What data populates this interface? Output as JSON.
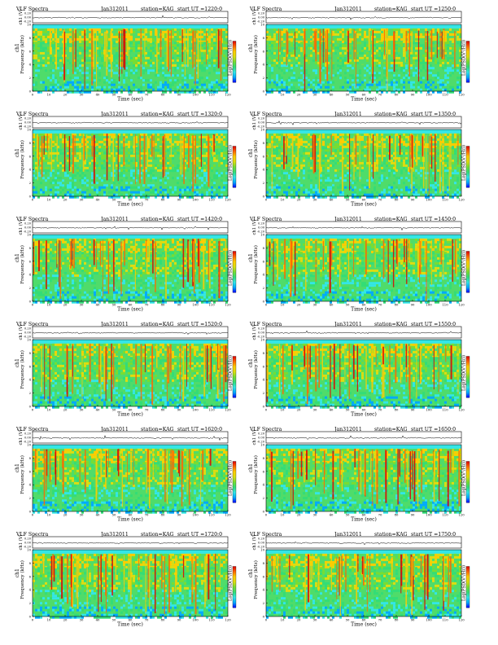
{
  "chart_data": [
    {
      "type": "heatmap",
      "title_left": "VLF Spectra",
      "date": "Jan312011",
      "station": "station=KAG",
      "start": "start  UT =1220:0",
      "top_ylabel": "ch1 (V)",
      "top_yticks": [
        "0.20",
        "0.00",
        "-0.20"
      ],
      "ylabel_1": "ch1",
      "ylabel_2": "Frequency  (kHz)",
      "yticks": [
        "0",
        "2",
        "4",
        "6",
        "8",
        "10"
      ],
      "xlabel": "Time  (sec)",
      "xticks": [
        "0",
        "10",
        "20",
        "30",
        "40",
        "50",
        "60",
        "70",
        "80",
        "90",
        "100",
        "110",
        "120"
      ],
      "xlim": [
        0,
        120
      ],
      "ylim": [
        0,
        10
      ],
      "colorbar_label": "Log(PSD(V²/Hz))"
    },
    {
      "type": "heatmap",
      "title_left": "VLF Spectra",
      "date": "Jan312011",
      "station": "station=KAG",
      "start": "start  UT =1250:0",
      "top_ylabel": "ch1 (V)",
      "top_yticks": [
        "0.20",
        "0.00",
        "-0.20"
      ],
      "ylabel_1": "ch1",
      "ylabel_2": "Frequency  (kHz)",
      "yticks": [
        "0",
        "2",
        "4",
        "6",
        "8",
        "10"
      ],
      "xlabel": "Time  (sec)",
      "xticks": [
        "0",
        "10",
        "20",
        "30",
        "40",
        "50",
        "60",
        "70",
        "80",
        "90",
        "100",
        "110",
        "120"
      ],
      "xlim": [
        0,
        120
      ],
      "ylim": [
        0,
        10
      ],
      "colorbar_label": "Log(PSD(V²/Hz))"
    },
    {
      "type": "heatmap",
      "title_left": "VLF Spectra",
      "date": "Jan312011",
      "station": "station=KAG",
      "start": "start  UT =1320:0",
      "top_ylabel": "ch1 (V)",
      "top_yticks": [
        "0.20",
        "0.00",
        "-0.20"
      ],
      "ylabel_1": "ch1",
      "ylabel_2": "Frequency  (kHz)",
      "yticks": [
        "0",
        "2",
        "4",
        "6",
        "8",
        "10"
      ],
      "xlabel": "Time  (sec)",
      "xticks": [
        "0",
        "10",
        "20",
        "30",
        "40",
        "50",
        "60",
        "70",
        "80",
        "90",
        "100",
        "110",
        "120"
      ],
      "xlim": [
        0,
        120
      ],
      "ylim": [
        0,
        10
      ],
      "colorbar_label": "Log(PSD(V²/Hz))"
    },
    {
      "type": "heatmap",
      "title_left": "VLF Spectra",
      "date": "Jan312011",
      "station": "station=KAG",
      "start": "start  UT =1350:0",
      "top_ylabel": "ch1 (V)",
      "top_yticks": [
        "0.20",
        "0.00",
        "-0.20"
      ],
      "ylabel_1": "ch1",
      "ylabel_2": "Frequency  (kHz)",
      "yticks": [
        "0",
        "2",
        "4",
        "6",
        "8",
        "10"
      ],
      "xlabel": "Time  (sec)",
      "xticks": [
        "0",
        "10",
        "20",
        "30",
        "40",
        "50",
        "60",
        "70",
        "80",
        "90",
        "100",
        "110",
        "120"
      ],
      "xlim": [
        0,
        120
      ],
      "ylim": [
        0,
        10
      ],
      "colorbar_label": "Log(PSD(V²/Hz))"
    },
    {
      "type": "heatmap",
      "title_left": "VLF Spectra",
      "date": "Jan312011",
      "station": "station=KAG",
      "start": "start  UT =1420:0",
      "top_ylabel": "ch1 (V)",
      "top_yticks": [
        "0.20",
        "0.00",
        "-0.20"
      ],
      "ylabel_1": "ch1",
      "ylabel_2": "Frequency  (kHz)",
      "yticks": [
        "0",
        "2",
        "4",
        "6",
        "8",
        "10"
      ],
      "xlabel": "Time  (sec)",
      "xticks": [
        "0",
        "10",
        "20",
        "30",
        "40",
        "50",
        "60",
        "70",
        "80",
        "90",
        "100",
        "110",
        "120"
      ],
      "xlim": [
        0,
        120
      ],
      "ylim": [
        0,
        10
      ],
      "colorbar_label": "Log(PSD(V²/Hz))"
    },
    {
      "type": "heatmap",
      "title_left": "VLF Spectra",
      "date": "Jan312011",
      "station": "station=KAG",
      "start": "start  UT =1450:0",
      "top_ylabel": "ch1 (V)",
      "top_yticks": [
        "0.20",
        "0.00",
        "-0.20"
      ],
      "ylabel_1": "ch1",
      "ylabel_2": "Frequency  (kHz)",
      "yticks": [
        "0",
        "2",
        "4",
        "6",
        "8",
        "10"
      ],
      "xlabel": "Time  (sec)",
      "xticks": [
        "0",
        "10",
        "20",
        "30",
        "40",
        "50",
        "60",
        "70",
        "80",
        "90",
        "100",
        "110",
        "120"
      ],
      "xlim": [
        0,
        120
      ],
      "ylim": [
        0,
        10
      ],
      "colorbar_label": "Log(PSD(V²/Hz))"
    },
    {
      "type": "heatmap",
      "title_left": "VLF Spectra",
      "date": "Jan312011",
      "station": "station=KAG",
      "start": "start  UT =1520:0",
      "top_ylabel": "ch1 (V)",
      "top_yticks": [
        "0.20",
        "0.00",
        "-0.20"
      ],
      "ylabel_1": "ch1",
      "ylabel_2": "Frequency  (kHz)",
      "yticks": [
        "0",
        "2",
        "4",
        "6",
        "8",
        "10"
      ],
      "xlabel": "Time  (sec)",
      "xticks": [
        "0",
        "10",
        "20",
        "30",
        "40",
        "50",
        "60",
        "70",
        "80",
        "90",
        "100",
        "110",
        "120"
      ],
      "xlim": [
        0,
        120
      ],
      "ylim": [
        0,
        10
      ],
      "colorbar_label": "Log(PSD(V²/Hz))"
    },
    {
      "type": "heatmap",
      "title_left": "VLF Spectra",
      "date": "Jan312011",
      "station": "station=KAG",
      "start": "start  UT =1550:0",
      "top_ylabel": "ch1 (V)",
      "top_yticks": [
        "0.20",
        "0.00",
        "-0.20"
      ],
      "ylabel_1": "ch1",
      "ylabel_2": "Frequency  (kHz)",
      "yticks": [
        "0",
        "2",
        "4",
        "6",
        "8",
        "10"
      ],
      "xlabel": "Time  (sec)",
      "xticks": [
        "0",
        "10",
        "20",
        "30",
        "40",
        "50",
        "60",
        "70",
        "80",
        "90",
        "100",
        "110",
        "120"
      ],
      "xlim": [
        0,
        120
      ],
      "ylim": [
        0,
        10
      ],
      "colorbar_label": "Log(PSD(V²/Hz))"
    },
    {
      "type": "heatmap",
      "title_left": "VLF Spectra",
      "date": "Jan312011",
      "station": "station=KAG",
      "start": "start  UT =1620:0",
      "top_ylabel": "ch1 (V)",
      "top_yticks": [
        "0.20",
        "0.00",
        "-0.20"
      ],
      "ylabel_1": "ch1",
      "ylabel_2": "Frequency  (kHz)",
      "yticks": [
        "0",
        "2",
        "4",
        "6",
        "8",
        "10"
      ],
      "xlabel": "Time  (sec)",
      "xticks": [
        "0",
        "10",
        "20",
        "30",
        "40",
        "50",
        "60",
        "70",
        "80",
        "90",
        "100",
        "110",
        "120"
      ],
      "xlim": [
        0,
        120
      ],
      "ylim": [
        0,
        10
      ],
      "colorbar_label": "Log(PSD(V²/Hz))"
    },
    {
      "type": "heatmap",
      "title_left": "VLF Spectra",
      "date": "Jan312011",
      "station": "station=KAG",
      "start": "start  UT =1650:0",
      "top_ylabel": "ch1 (V)",
      "top_yticks": [
        "0.20",
        "0.00",
        "-0.20"
      ],
      "ylabel_1": "ch1",
      "ylabel_2": "Frequency  (kHz)",
      "yticks": [
        "0",
        "2",
        "4",
        "6",
        "8",
        "10"
      ],
      "xlabel": "Time  (sec)",
      "xticks": [
        "0",
        "10",
        "20",
        "30",
        "40",
        "50",
        "60",
        "70",
        "80",
        "90",
        "100",
        "110",
        "120"
      ],
      "xlim": [
        0,
        120
      ],
      "ylim": [
        0,
        10
      ],
      "colorbar_label": "Log(PSD(V²/Hz))"
    },
    {
      "type": "heatmap",
      "title_left": "VLF Spectra",
      "date": "Jan312011",
      "station": "station=KAG",
      "start": "start  UT =1720:0",
      "top_ylabel": "ch1 (V)",
      "top_yticks": [
        "0.20",
        "0.00",
        "-0.20"
      ],
      "ylabel_1": "ch1",
      "ylabel_2": "Frequency  (kHz)",
      "yticks": [
        "0",
        "2",
        "4",
        "6",
        "8",
        "10"
      ],
      "xlabel": "Time  (sec)",
      "xticks": [
        "0",
        "10",
        "20",
        "30",
        "40",
        "50",
        "60",
        "70",
        "80",
        "90",
        "100",
        "110",
        "120"
      ],
      "xlim": [
        0,
        120
      ],
      "ylim": [
        0,
        10
      ],
      "colorbar_label": "Log(PSD(V²/Hz))"
    },
    {
      "type": "heatmap",
      "title_left": "VLF Spectra",
      "date": "Jan312011",
      "station": "station=KAG",
      "start": "start  UT =1750:0",
      "top_ylabel": "ch1 (V)",
      "top_yticks": [
        "0.20",
        "0.00",
        "-0.20"
      ],
      "ylabel_1": "ch1",
      "ylabel_2": "Frequency  (kHz)",
      "yticks": [
        "0",
        "2",
        "4",
        "6",
        "8",
        "10"
      ],
      "xlabel": "Time  (sec)",
      "xticks": [
        "0",
        "10",
        "20",
        "30",
        "40",
        "50",
        "60",
        "70",
        "80",
        "90",
        "100",
        "110",
        "120"
      ],
      "xlim": [
        0,
        120
      ],
      "ylim": [
        0,
        10
      ],
      "colorbar_label": "Log(PSD(V²/Hz))"
    }
  ],
  "colors": {
    "colormap": [
      "#0000ff",
      "#00aaff",
      "#33e6e6",
      "#33dd77",
      "#77dd33",
      "#dddd11",
      "#ffcc00",
      "#ff6600",
      "#dd0000"
    ],
    "background": "#ffffff"
  }
}
